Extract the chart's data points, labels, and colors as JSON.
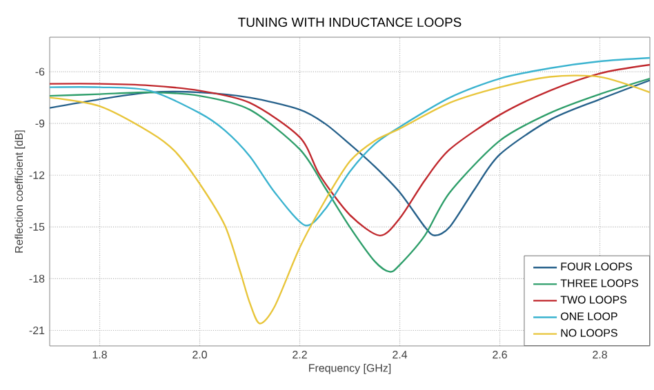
{
  "chart_data": {
    "type": "line",
    "title": "TUNING WITH INDUCTANCE LOOPS",
    "xlabel": "Frequency [GHz]",
    "ylabel": "Reflection coefficient [dB]",
    "xlim": [
      1.7,
      2.9
    ],
    "ylim": [
      -21.9,
      -4.0
    ],
    "xticks": [
      1.8,
      {
        "value": 2.0,
        "label": "2.0"
      },
      2.2,
      2.4,
      2.6,
      2.8
    ],
    "yticks": [
      -21,
      -18,
      -15,
      -12,
      -9,
      -6
    ],
    "grid": true,
    "legend": "bottom right",
    "series": [
      {
        "name": "FOUR LOOPS",
        "color": "#25608a",
        "x": [
          1.7,
          1.8,
          1.9,
          2.0,
          2.1,
          2.2,
          2.25,
          2.3,
          2.35,
          2.4,
          2.45,
          2.47,
          2.5,
          2.55,
          2.6,
          2.7,
          2.8,
          2.9
        ],
        "values": [
          -8.1,
          -7.6,
          -7.2,
          -7.2,
          -7.5,
          -8.2,
          -9.0,
          -10.2,
          -11.5,
          -13.0,
          -15.0,
          -15.5,
          -15.0,
          -12.8,
          -10.8,
          -8.8,
          -7.6,
          -6.5
        ]
      },
      {
        "name": "THREE LOOPS",
        "color": "#2e9e6a",
        "x": [
          1.7,
          1.8,
          1.9,
          2.0,
          2.1,
          2.2,
          2.25,
          2.3,
          2.35,
          2.38,
          2.4,
          2.45,
          2.5,
          2.6,
          2.7,
          2.8,
          2.9
        ],
        "values": [
          -7.4,
          -7.3,
          -7.2,
          -7.4,
          -8.2,
          -10.5,
          -12.7,
          -15.0,
          -17.0,
          -17.6,
          -17.2,
          -15.5,
          -13.0,
          -10.0,
          -8.4,
          -7.3,
          -6.4
        ]
      },
      {
        "name": "TWO LOOPS",
        "color": "#c0282d",
        "x": [
          1.7,
          1.8,
          1.9,
          2.0,
          2.1,
          2.2,
          2.24,
          2.3,
          2.36,
          2.4,
          2.45,
          2.5,
          2.6,
          2.7,
          2.8,
          2.9
        ],
        "values": [
          -6.7,
          -6.7,
          -6.8,
          -7.1,
          -7.8,
          -9.8,
          -12.0,
          -14.3,
          -15.5,
          -14.5,
          -12.3,
          -10.5,
          -8.5,
          -7.1,
          -6.1,
          -5.6
        ]
      },
      {
        "name": "ONE LOOP",
        "color": "#3ab3cf",
        "x": [
          1.7,
          1.8,
          1.9,
          2.0,
          2.05,
          2.1,
          2.15,
          2.21,
          2.25,
          2.3,
          2.35,
          2.4,
          2.5,
          2.6,
          2.7,
          2.8,
          2.9
        ],
        "values": [
          -6.9,
          -6.9,
          -7.1,
          -8.4,
          -9.4,
          -10.9,
          -13.0,
          -14.9,
          -14.0,
          -11.8,
          -10.2,
          -9.2,
          -7.5,
          -6.4,
          -5.8,
          -5.4,
          -5.2
        ]
      },
      {
        "name": "NO LOOPS",
        "color": "#e8c53a",
        "x": [
          1.7,
          1.8,
          1.9,
          1.95,
          2.0,
          2.05,
          2.08,
          2.1,
          2.12,
          2.15,
          2.2,
          2.25,
          2.3,
          2.35,
          2.4,
          2.5,
          2.6,
          2.7,
          2.8,
          2.9
        ],
        "values": [
          -7.5,
          -8.0,
          -9.5,
          -10.6,
          -12.5,
          -14.9,
          -17.5,
          -19.4,
          -20.6,
          -19.6,
          -16.2,
          -13.5,
          -11.2,
          -10.0,
          -9.3,
          -7.8,
          -6.9,
          -6.3,
          -6.3,
          -7.2
        ]
      }
    ]
  }
}
